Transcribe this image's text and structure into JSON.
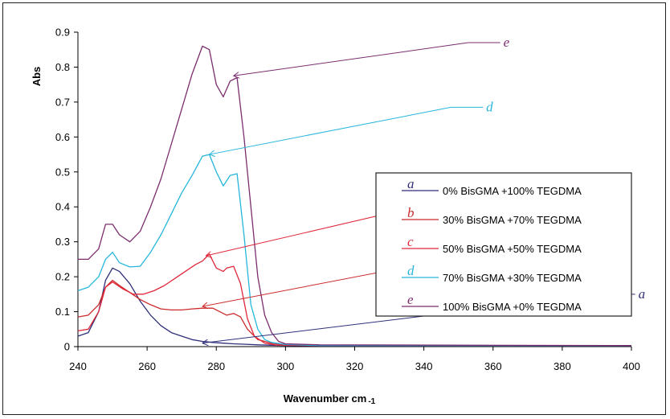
{
  "chart_data": {
    "type": "line",
    "xlabel": "Wavenumber cm",
    "xlabel_sub": "-1",
    "ylabel": "Abs",
    "xlim": [
      240,
      400
    ],
    "ylim": [
      0,
      0.9
    ],
    "x_ticks": [
      240,
      260,
      280,
      300,
      320,
      340,
      360,
      380,
      400
    ],
    "y_ticks": [
      0,
      0.1,
      0.2,
      0.3,
      0.4,
      0.5,
      0.6,
      0.7,
      0.8,
      0.9
    ],
    "y_tick_labels": [
      "0",
      "0.1",
      "0.2",
      "0.3",
      "0.4",
      "0.5",
      "0.6",
      "0.7",
      "0.8",
      "0.9"
    ],
    "legend_position": "right",
    "series": [
      {
        "name": "0% BisGMA +100% TEGDMA",
        "letter": "a",
        "color": "#2f2f7a",
        "x": [
          240,
          243,
          246,
          248,
          250,
          252,
          255,
          258,
          261,
          264,
          267,
          270,
          273,
          276,
          279,
          282,
          285,
          288,
          292,
          296,
          300,
          310,
          400
        ],
        "y": [
          0.03,
          0.04,
          0.1,
          0.19,
          0.225,
          0.215,
          0.18,
          0.13,
          0.09,
          0.06,
          0.04,
          0.03,
          0.02,
          0.015,
          0.012,
          0.01,
          0.008,
          0.007,
          0.005,
          0.004,
          0.003,
          0.002,
          0.002
        ],
        "callout_to": [
          276,
          0.01
        ],
        "letter_pos": [
          402,
          0.15
        ]
      },
      {
        "name": "30% BisGMA +70% TEGDMA",
        "letter": "b",
        "color": "#cc2a2a",
        "x": [
          240,
          243,
          246,
          248,
          250,
          252,
          255,
          258,
          261,
          264,
          267,
          270,
          273,
          276,
          279,
          281,
          283,
          285,
          287,
          289,
          292,
          296,
          300,
          310,
          400
        ],
        "y": [
          0.085,
          0.09,
          0.12,
          0.17,
          0.19,
          0.175,
          0.155,
          0.135,
          0.12,
          0.108,
          0.105,
          0.105,
          0.108,
          0.11,
          0.11,
          0.1,
          0.09,
          0.095,
          0.085,
          0.05,
          0.02,
          0.01,
          0.005,
          0.003,
          0.003
        ],
        "callout_to": [
          276,
          0.115
        ],
        "letter_pos": [
          383,
          0.3
        ]
      },
      {
        "name": "50% BisGMA +50% TEGDMA",
        "letter": "c",
        "color": "#e0283c",
        "x": [
          240,
          243,
          246,
          248,
          250,
          253,
          256,
          259,
          262,
          265,
          268,
          271,
          274,
          276,
          278,
          280,
          282,
          283,
          285,
          287,
          289,
          291,
          294,
          297,
          300,
          310,
          400
        ],
        "y": [
          0.045,
          0.05,
          0.1,
          0.17,
          0.185,
          0.165,
          0.15,
          0.15,
          0.16,
          0.175,
          0.195,
          0.215,
          0.235,
          0.245,
          0.265,
          0.225,
          0.215,
          0.225,
          0.23,
          0.18,
          0.08,
          0.03,
          0.01,
          0.005,
          0.004,
          0.003,
          0.003
        ],
        "callout_to": [
          277,
          0.26
        ],
        "letter_pos": [
          361,
          0.43
        ]
      },
      {
        "name": "70% BisGMA +30% TEGDMA",
        "letter": "d",
        "color": "#26b6dc",
        "x": [
          240,
          243,
          246,
          248,
          250,
          252,
          255,
          258,
          261,
          264,
          267,
          270,
          273,
          276,
          278,
          280,
          282,
          284,
          286,
          288,
          290,
          292,
          294,
          296,
          300,
          310,
          400
        ],
        "y": [
          0.16,
          0.17,
          0.2,
          0.25,
          0.27,
          0.24,
          0.228,
          0.23,
          0.27,
          0.32,
          0.38,
          0.44,
          0.49,
          0.545,
          0.55,
          0.5,
          0.46,
          0.49,
          0.495,
          0.32,
          0.12,
          0.05,
          0.02,
          0.012,
          0.006,
          0.003,
          0.003
        ],
        "callout_to": [
          278,
          0.55
        ],
        "letter_pos": [
          358,
          0.685
        ]
      },
      {
        "name": "100% BisGMA +0% TEGDMA",
        "letter": "e",
        "color": "#7b2d6e",
        "x": [
          240,
          243,
          246,
          248,
          250,
          252,
          255,
          258,
          261,
          264,
          267,
          270,
          273,
          276,
          278,
          280,
          282,
          284,
          286,
          288,
          290,
          292,
          294,
          296,
          298,
          300,
          310,
          400
        ],
        "y": [
          0.25,
          0.25,
          0.28,
          0.35,
          0.35,
          0.32,
          0.3,
          0.33,
          0.4,
          0.48,
          0.58,
          0.68,
          0.78,
          0.86,
          0.85,
          0.75,
          0.715,
          0.76,
          0.77,
          0.6,
          0.4,
          0.2,
          0.09,
          0.04,
          0.015,
          0.008,
          0.005,
          0.003
        ],
        "callout_to": [
          285,
          0.775
        ],
        "letter_pos": [
          363,
          0.87
        ]
      }
    ]
  }
}
